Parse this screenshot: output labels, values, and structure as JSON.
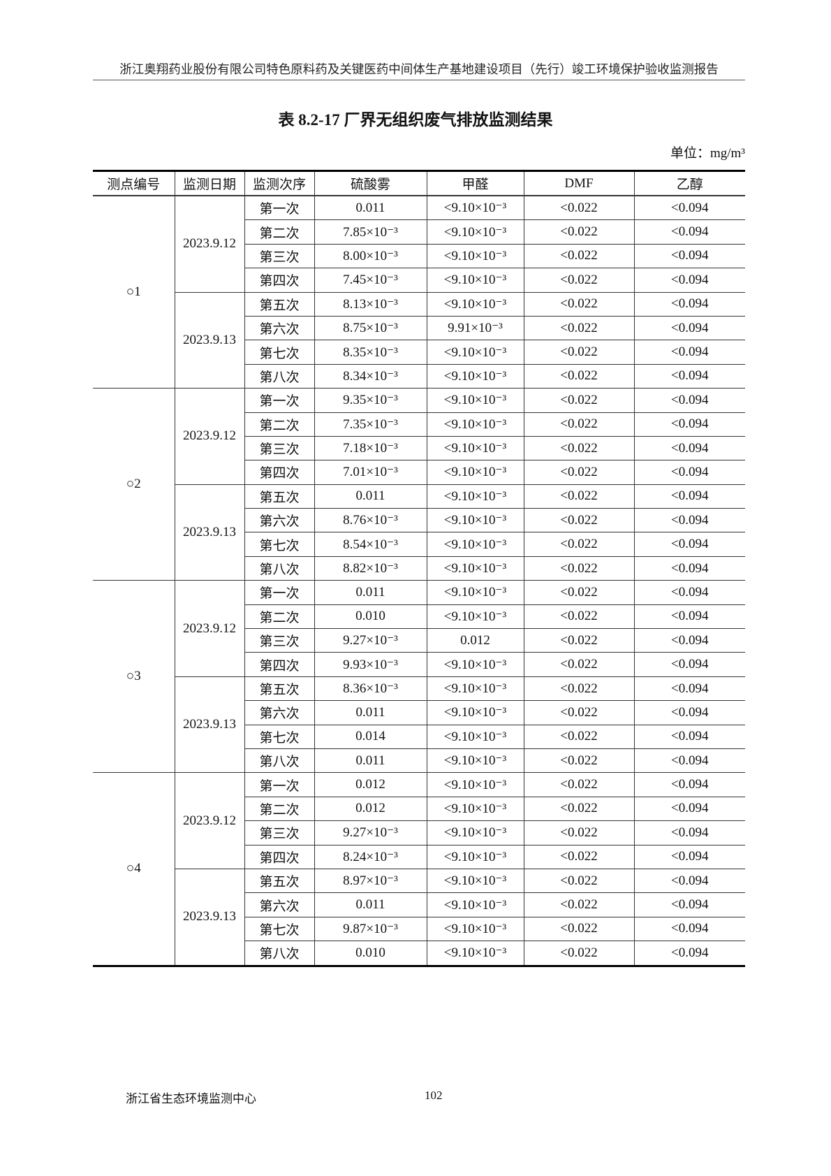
{
  "header": {
    "running_title": "浙江奥翔药业股份有限公司特色原料药及关键医药中间体生产基地建设项目（先行）竣工环境保护验收监测报告"
  },
  "table_title": "表 8.2-17  厂界无组织废气排放监测结果",
  "unit": "单位：mg/m³",
  "columns": [
    "测点编号",
    "监测日期",
    "监测次序",
    "硫酸雾",
    "甲醛",
    "DMF",
    "乙醇"
  ],
  "sites": [
    {
      "id": "○1",
      "days": [
        {
          "date": "2023.9.12",
          "rows": [
            [
              "第一次",
              "0.011",
              "<9.10×10⁻³",
              "<0.022",
              "<0.094"
            ],
            [
              "第二次",
              "7.85×10⁻³",
              "<9.10×10⁻³",
              "<0.022",
              "<0.094"
            ],
            [
              "第三次",
              "8.00×10⁻³",
              "<9.10×10⁻³",
              "<0.022",
              "<0.094"
            ],
            [
              "第四次",
              "7.45×10⁻³",
              "<9.10×10⁻³",
              "<0.022",
              "<0.094"
            ]
          ]
        },
        {
          "date": "2023.9.13",
          "rows": [
            [
              "第五次",
              "8.13×10⁻³",
              "<9.10×10⁻³",
              "<0.022",
              "<0.094"
            ],
            [
              "第六次",
              "8.75×10⁻³",
              "9.91×10⁻³",
              "<0.022",
              "<0.094"
            ],
            [
              "第七次",
              "8.35×10⁻³",
              "<9.10×10⁻³",
              "<0.022",
              "<0.094"
            ],
            [
              "第八次",
              "8.34×10⁻³",
              "<9.10×10⁻³",
              "<0.022",
              "<0.094"
            ]
          ]
        }
      ]
    },
    {
      "id": "○2",
      "days": [
        {
          "date": "2023.9.12",
          "rows": [
            [
              "第一次",
              "9.35×10⁻³",
              "<9.10×10⁻³",
              "<0.022",
              "<0.094"
            ],
            [
              "第二次",
              "7.35×10⁻³",
              "<9.10×10⁻³",
              "<0.022",
              "<0.094"
            ],
            [
              "第三次",
              "7.18×10⁻³",
              "<9.10×10⁻³",
              "<0.022",
              "<0.094"
            ],
            [
              "第四次",
              "7.01×10⁻³",
              "<9.10×10⁻³",
              "<0.022",
              "<0.094"
            ]
          ]
        },
        {
          "date": "2023.9.13",
          "rows": [
            [
              "第五次",
              "0.011",
              "<9.10×10⁻³",
              "<0.022",
              "<0.094"
            ],
            [
              "第六次",
              "8.76×10⁻³",
              "<9.10×10⁻³",
              "<0.022",
              "<0.094"
            ],
            [
              "第七次",
              "8.54×10⁻³",
              "<9.10×10⁻³",
              "<0.022",
              "<0.094"
            ],
            [
              "第八次",
              "8.82×10⁻³",
              "<9.10×10⁻³",
              "<0.022",
              "<0.094"
            ]
          ]
        }
      ]
    },
    {
      "id": "○3",
      "days": [
        {
          "date": "2023.9.12",
          "rows": [
            [
              "第一次",
              "0.011",
              "<9.10×10⁻³",
              "<0.022",
              "<0.094"
            ],
            [
              "第二次",
              "0.010",
              "<9.10×10⁻³",
              "<0.022",
              "<0.094"
            ],
            [
              "第三次",
              "9.27×10⁻³",
              "0.012",
              "<0.022",
              "<0.094"
            ],
            [
              "第四次",
              "9.93×10⁻³",
              "<9.10×10⁻³",
              "<0.022",
              "<0.094"
            ]
          ]
        },
        {
          "date": "2023.9.13",
          "rows": [
            [
              "第五次",
              "8.36×10⁻³",
              "<9.10×10⁻³",
              "<0.022",
              "<0.094"
            ],
            [
              "第六次",
              "0.011",
              "<9.10×10⁻³",
              "<0.022",
              "<0.094"
            ],
            [
              "第七次",
              "0.014",
              "<9.10×10⁻³",
              "<0.022",
              "<0.094"
            ],
            [
              "第八次",
              "0.011",
              "<9.10×10⁻³",
              "<0.022",
              "<0.094"
            ]
          ]
        }
      ]
    },
    {
      "id": "○4",
      "days": [
        {
          "date": "2023.9.12",
          "rows": [
            [
              "第一次",
              "0.012",
              "<9.10×10⁻³",
              "<0.022",
              "<0.094"
            ],
            [
              "第二次",
              "0.012",
              "<9.10×10⁻³",
              "<0.022",
              "<0.094"
            ],
            [
              "第三次",
              "9.27×10⁻³",
              "<9.10×10⁻³",
              "<0.022",
              "<0.094"
            ],
            [
              "第四次",
              "8.24×10⁻³",
              "<9.10×10⁻³",
              "<0.022",
              "<0.094"
            ]
          ]
        },
        {
          "date": "2023.9.13",
          "rows": [
            [
              "第五次",
              "8.97×10⁻³",
              "<9.10×10⁻³",
              "<0.022",
              "<0.094"
            ],
            [
              "第六次",
              "0.011",
              "<9.10×10⁻³",
              "<0.022",
              "<0.094"
            ],
            [
              "第七次",
              "9.87×10⁻³",
              "<9.10×10⁻³",
              "<0.022",
              "<0.094"
            ],
            [
              "第八次",
              "0.010",
              "<9.10×10⁻³",
              "<0.022",
              "<0.094"
            ]
          ]
        }
      ]
    }
  ],
  "footer": {
    "organization": "浙江省生态环境监测中心",
    "page_number": "102"
  }
}
